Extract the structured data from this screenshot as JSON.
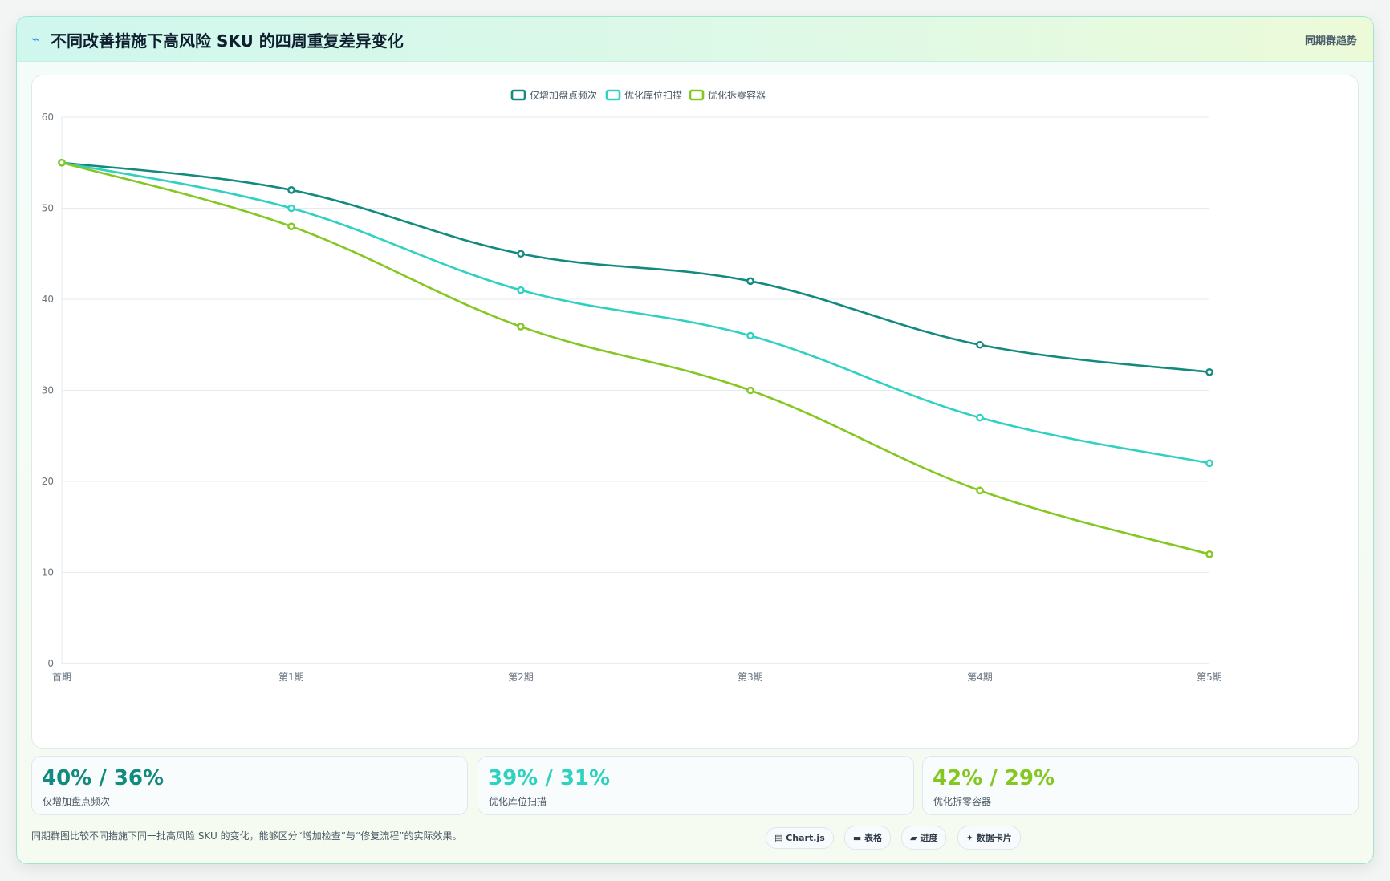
{
  "header": {
    "icon": "trend-line-icon",
    "title": "不同改善措施下高风险 SKU 的四周重复差异变化",
    "tag": "同期群趋势"
  },
  "chart_data": {
    "type": "line",
    "categories": [
      "首期",
      "第1期",
      "第2期",
      "第3期",
      "第4期",
      "第5期"
    ],
    "ylim": [
      0,
      60
    ],
    "yticks": [
      0,
      10,
      20,
      30,
      40,
      50,
      60
    ],
    "grid": true,
    "legend_position": "top-center",
    "series": [
      {
        "name": "仅增加盘点频次",
        "color": "#128a7e",
        "values": [
          55,
          52,
          45,
          42,
          35,
          32
        ]
      },
      {
        "name": "优化库位扫描",
        "color": "#2fd1c0",
        "values": [
          55,
          50,
          41,
          36,
          27,
          22
        ]
      },
      {
        "name": "优化拆零容器",
        "color": "#84c720",
        "values": [
          55,
          48,
          37,
          30,
          19,
          12
        ]
      }
    ]
  },
  "stats": [
    {
      "value": "40% / 36%",
      "label": "仅增加盘点频次",
      "color": "#128a7e"
    },
    {
      "value": "39% / 31%",
      "label": "优化库位扫描",
      "color": "#2fd1c0"
    },
    {
      "value": "42% / 29%",
      "label": "优化拆零容器",
      "color": "#84c720"
    }
  ],
  "footnote": "同期群图比较不同措施下同一批高风险 SKU 的变化，能够区分“增加检查”与“修复流程”的实际效果。",
  "chips": [
    {
      "icon": "chart-icon",
      "label": "Chart.js"
    },
    {
      "icon": "table-icon",
      "label": "表格"
    },
    {
      "icon": "progress-icon",
      "label": "进度"
    },
    {
      "icon": "card-icon",
      "label": "数据卡片"
    }
  ]
}
